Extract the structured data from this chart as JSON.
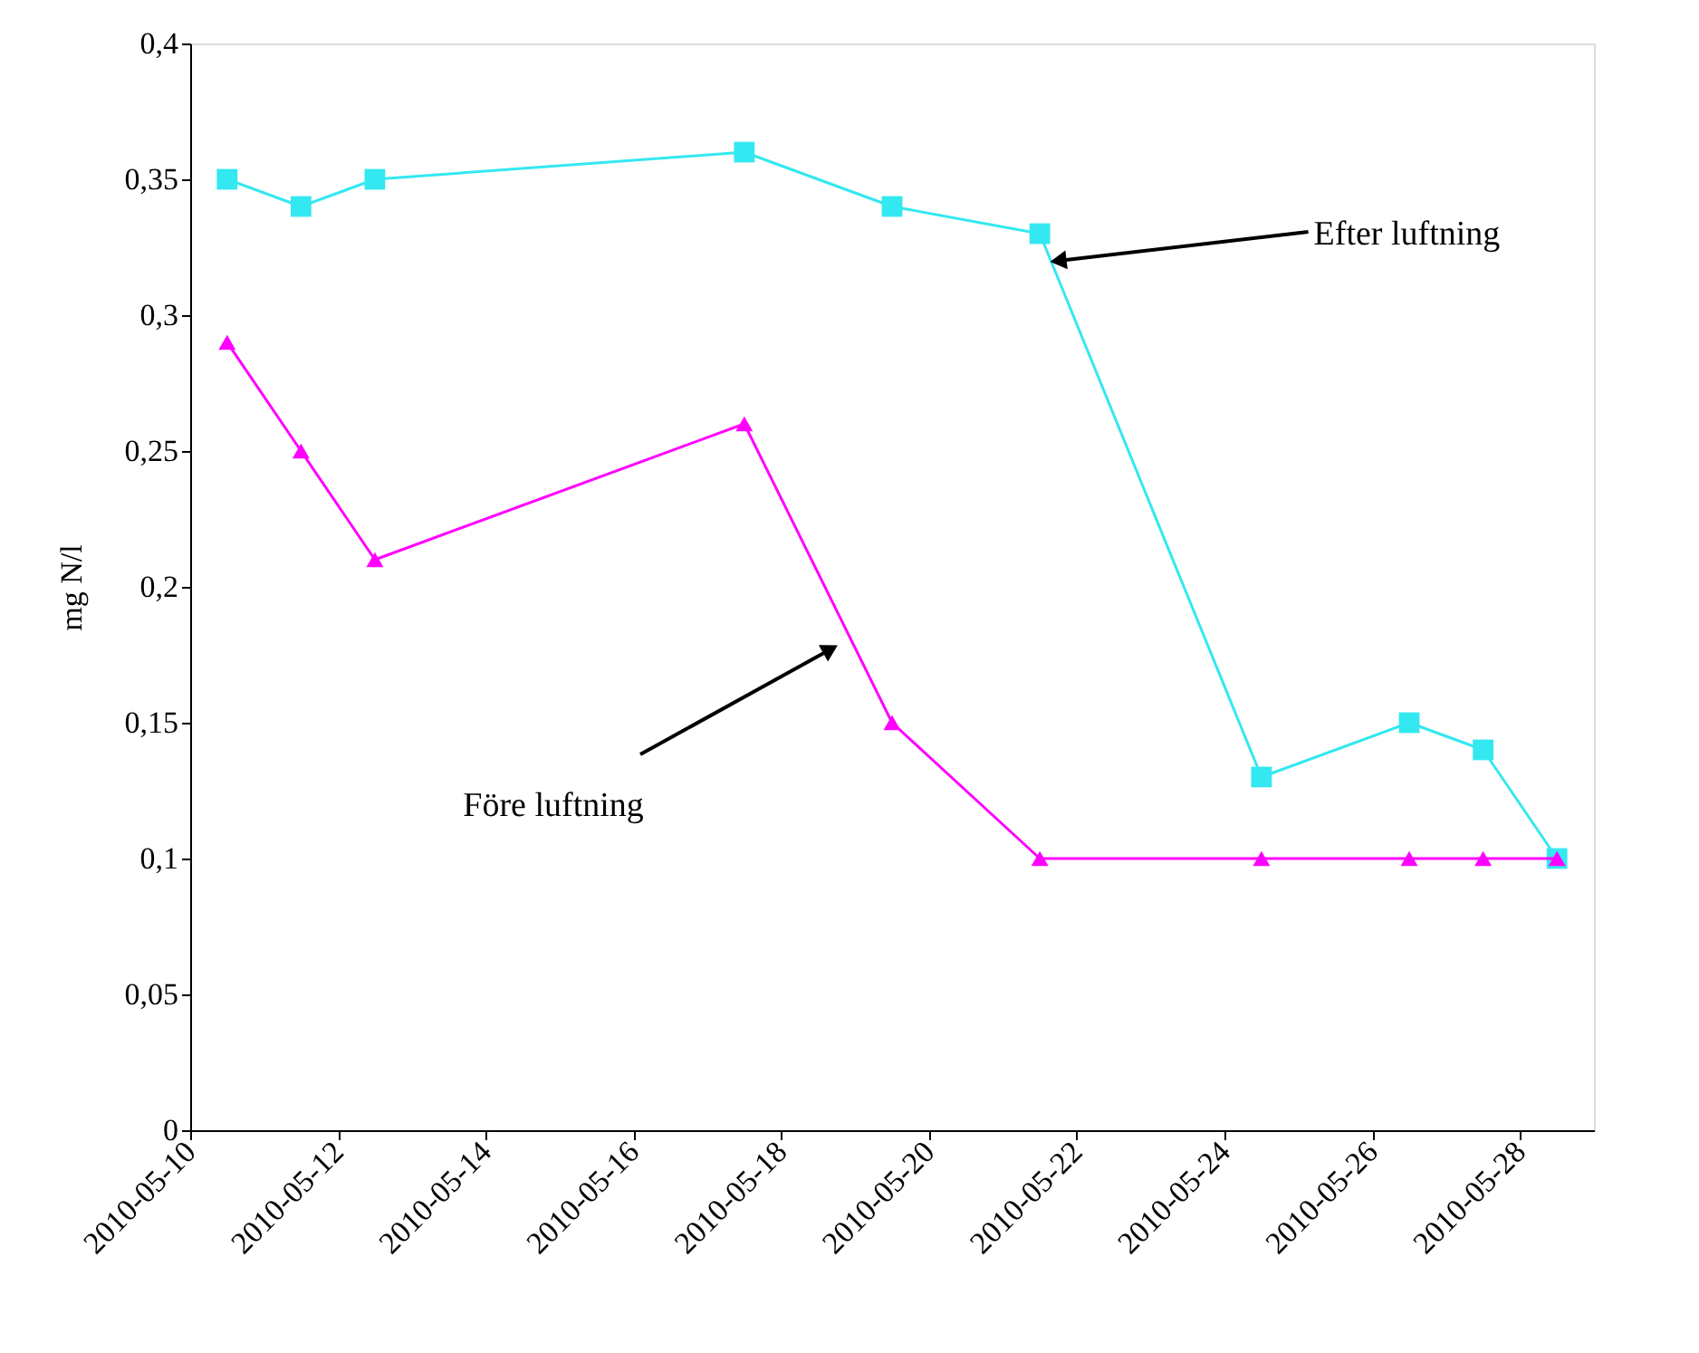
{
  "chart_data": {
    "type": "line",
    "ylabel": "mg N/l",
    "x": [
      "2010-05-10T12:00",
      "2010-05-11T12:00",
      "2010-05-12T12:00",
      "2010-05-17T12:00",
      "2010-05-19T12:00",
      "2010-05-21T12:00",
      "2010-05-24T12:00",
      "2010-05-26T12:00",
      "2010-05-27T12:00",
      "2010-05-28T12:00"
    ],
    "series": [
      {
        "color": "#33e8f0",
        "marker": "square",
        "values": [
          0.35,
          0.34,
          0.35,
          0.36,
          0.34,
          0.33,
          0.13,
          0.15,
          0.14,
          0.1
        ]
      },
      {
        "color": "#ff00ff",
        "marker": "triangle",
        "values": [
          0.29,
          0.25,
          0.21,
          0.26,
          0.15,
          0.1,
          0.1,
          0.1,
          0.1,
          0.1
        ]
      }
    ],
    "xlim": [
      "2010-05-10",
      "2010-05-29"
    ],
    "xticks": [
      "2010-05-10",
      "2010-05-12",
      "2010-05-14",
      "2010-05-16",
      "2010-05-18",
      "2010-05-20",
      "2010-05-22",
      "2010-05-24",
      "2010-05-26",
      "2010-05-28"
    ],
    "ylim": [
      0,
      0.4
    ],
    "yticks": [
      {
        "value": 0,
        "label": "0"
      },
      {
        "value": 0.05,
        "label": "0,05"
      },
      {
        "value": 0.1,
        "label": "0,1"
      },
      {
        "value": 0.15,
        "label": "0,15"
      },
      {
        "value": 0.2,
        "label": "0,2"
      },
      {
        "value": 0.25,
        "label": "0,25"
      },
      {
        "value": 0.3,
        "label": "0,3"
      },
      {
        "value": 0.35,
        "label": "0,35"
      },
      {
        "value": 0.4,
        "label": "0,4"
      }
    ],
    "annotations": [
      {
        "text": "Efter luftning",
        "x": "2010-05-21T18:00",
        "y": 0.32
      },
      {
        "text": "Före luftning",
        "x": "2010-05-18T16:00",
        "y": 0.177
      }
    ],
    "grid": false,
    "line_style": "solid"
  }
}
